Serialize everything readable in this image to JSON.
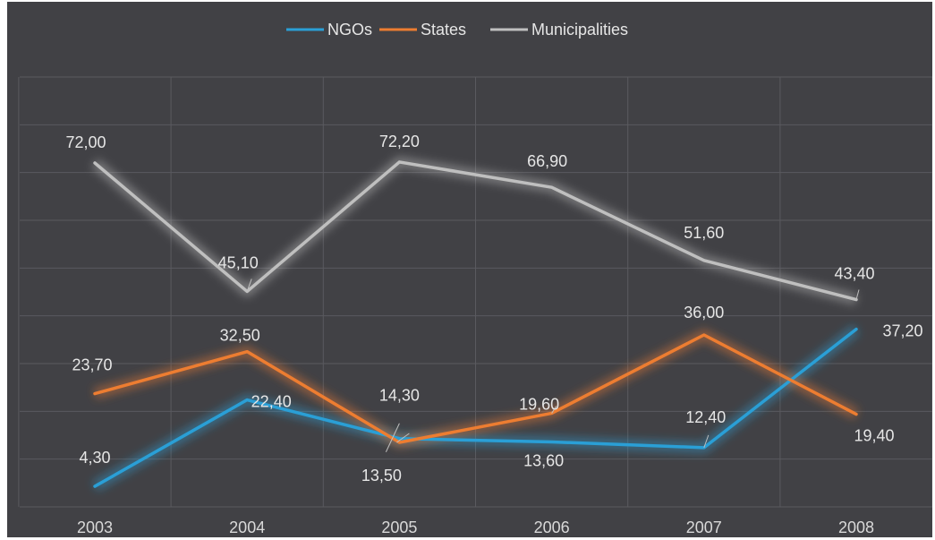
{
  "chart_data": {
    "type": "line",
    "title": "",
    "xlabel": "",
    "ylabel": "",
    "categories": [
      "2003",
      "2004",
      "2005",
      "2006",
      "2007",
      "2008"
    ],
    "series": [
      {
        "name": "NGOs",
        "color": "#2a9fd6",
        "values": [
          4.3,
          22.4,
          14.3,
          13.6,
          12.4,
          37.2
        ],
        "labels": [
          "4,30",
          "22,40",
          "14,30",
          "13,60",
          "12,40",
          "37,20"
        ]
      },
      {
        "name": "States",
        "color": "#ed7d31",
        "values": [
          23.7,
          32.5,
          13.5,
          19.6,
          36.0,
          19.4
        ],
        "labels": [
          "23,70",
          "32,50",
          "13,50",
          "19,60",
          "36,00",
          "19,40"
        ]
      },
      {
        "name": "Municipalities",
        "color": "#bfbfbf",
        "values": [
          72.0,
          45.1,
          72.2,
          66.9,
          51.6,
          43.4
        ],
        "labels": [
          "72,00",
          "45,10",
          "72,20",
          "66,90",
          "51,60",
          "43,40"
        ]
      }
    ],
    "ylim": [
      0,
      90
    ],
    "grid": true,
    "legend": "top"
  }
}
